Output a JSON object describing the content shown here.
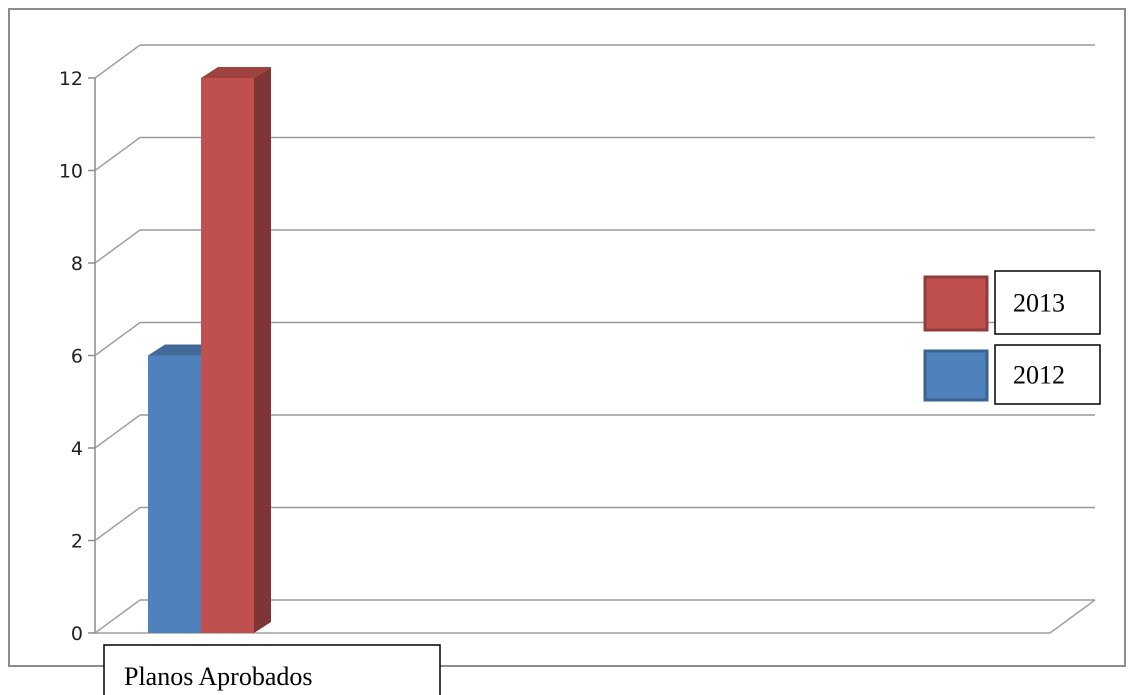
{
  "chart_data": {
    "type": "bar",
    "categories": [
      "Planos Aprobados"
    ],
    "series": [
      {
        "name": "2012",
        "values": [
          6
        ],
        "color": "#4f81bd"
      },
      {
        "name": "2013",
        "values": [
          12
        ],
        "color": "#c0504d"
      }
    ],
    "ylim": [
      0,
      12
    ],
    "yticks": [
      "0",
      "2",
      "4",
      "6",
      "8",
      "10",
      "12"
    ],
    "grid": true,
    "legend_position": "right",
    "legend_order": [
      "2013",
      "2012"
    ]
  }
}
